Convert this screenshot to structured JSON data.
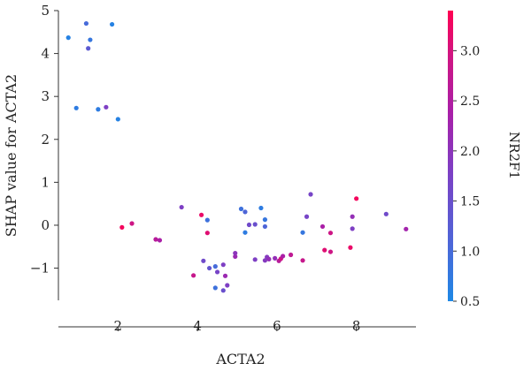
{
  "chart_data": {
    "type": "scatter",
    "xlabel": "ACTA2",
    "ylabel": "SHAP value for ACTA2",
    "xlim": [
      0.5,
      9.5
    ],
    "ylim": [
      -1.75,
      5.0
    ],
    "xticks": [
      2,
      4,
      6,
      8
    ],
    "xtick_labels": [
      "2",
      "4",
      "6",
      "8"
    ],
    "yticks": [
      5,
      4,
      3,
      2,
      1,
      0,
      -1
    ],
    "ytick_labels": [
      "5",
      "4",
      "3",
      "2",
      "1",
      "0",
      "−1"
    ],
    "colorbar": {
      "label": "NR2F1",
      "min": 0.5,
      "max": 3.4,
      "ticks": [
        3.0,
        2.5,
        2.0,
        1.5,
        1.0,
        0.5
      ],
      "tick_labels": [
        "3.0",
        "2.5",
        "2.0",
        "1.5",
        "1.0",
        "0.5"
      ],
      "colormap": [
        "#1e88e5",
        "#4d66d8",
        "#7e3fc4",
        "#a91fa8",
        "#d11581",
        "#ff0052"
      ]
    },
    "points": [
      {
        "x": 0.75,
        "y": 4.37,
        "c": 0.6
      },
      {
        "x": 1.2,
        "y": 4.7,
        "c": 1.0
      },
      {
        "x": 1.3,
        "y": 4.32,
        "c": 0.8
      },
      {
        "x": 1.25,
        "y": 4.12,
        "c": 1.3
      },
      {
        "x": 1.85,
        "y": 4.68,
        "c": 0.6
      },
      {
        "x": 0.95,
        "y": 2.73,
        "c": 0.7
      },
      {
        "x": 1.5,
        "y": 2.7,
        "c": 0.7
      },
      {
        "x": 1.7,
        "y": 2.75,
        "c": 1.8
      },
      {
        "x": 2.0,
        "y": 2.47,
        "c": 0.6
      },
      {
        "x": 2.1,
        "y": -0.05,
        "c": 3.3
      },
      {
        "x": 2.35,
        "y": 0.04,
        "c": 2.9
      },
      {
        "x": 2.95,
        "y": -0.33,
        "c": 2.6
      },
      {
        "x": 3.05,
        "y": -0.35,
        "c": 2.4
      },
      {
        "x": 3.6,
        "y": 0.42,
        "c": 1.8
      },
      {
        "x": 3.9,
        "y": -1.17,
        "c": 2.8
      },
      {
        "x": 4.1,
        "y": 0.24,
        "c": 3.2
      },
      {
        "x": 4.25,
        "y": 0.12,
        "c": 0.9
      },
      {
        "x": 4.25,
        "y": -0.18,
        "c": 3.1
      },
      {
        "x": 4.15,
        "y": -0.83,
        "c": 1.6
      },
      {
        "x": 4.3,
        "y": -1.0,
        "c": 1.4
      },
      {
        "x": 4.45,
        "y": -0.96,
        "c": 1.0
      },
      {
        "x": 4.5,
        "y": -1.09,
        "c": 1.7
      },
      {
        "x": 4.45,
        "y": -1.46,
        "c": 0.9
      },
      {
        "x": 4.65,
        "y": -1.52,
        "c": 1.5
      },
      {
        "x": 4.75,
        "y": -1.4,
        "c": 1.8
      },
      {
        "x": 4.65,
        "y": -0.92,
        "c": 1.8
      },
      {
        "x": 4.7,
        "y": -1.18,
        "c": 2.2
      },
      {
        "x": 4.95,
        "y": -0.73,
        "c": 2.2
      },
      {
        "x": 4.95,
        "y": -0.65,
        "c": 2.0
      },
      {
        "x": 5.1,
        "y": 0.38,
        "c": 0.9
      },
      {
        "x": 5.2,
        "y": 0.31,
        "c": 1.1
      },
      {
        "x": 5.2,
        "y": -0.17,
        "c": 0.7
      },
      {
        "x": 5.3,
        "y": 0.01,
        "c": 1.6
      },
      {
        "x": 5.45,
        "y": 0.02,
        "c": 1.5
      },
      {
        "x": 5.6,
        "y": 0.4,
        "c": 0.7
      },
      {
        "x": 5.7,
        "y": 0.13,
        "c": 0.8
      },
      {
        "x": 5.7,
        "y": -0.03,
        "c": 1.1
      },
      {
        "x": 5.45,
        "y": -0.8,
        "c": 1.8
      },
      {
        "x": 5.7,
        "y": -0.82,
        "c": 1.9
      },
      {
        "x": 5.75,
        "y": -0.74,
        "c": 1.9
      },
      {
        "x": 5.8,
        "y": -0.79,
        "c": 2.1
      },
      {
        "x": 5.95,
        "y": -0.77,
        "c": 2.1
      },
      {
        "x": 6.05,
        "y": -0.83,
        "c": 2.6
      },
      {
        "x": 6.1,
        "y": -0.78,
        "c": 2.9
      },
      {
        "x": 6.15,
        "y": -0.72,
        "c": 2.4
      },
      {
        "x": 6.35,
        "y": -0.69,
        "c": 2.7
      },
      {
        "x": 6.65,
        "y": -0.17,
        "c": 0.8
      },
      {
        "x": 6.65,
        "y": -0.82,
        "c": 2.8
      },
      {
        "x": 6.75,
        "y": 0.2,
        "c": 1.7
      },
      {
        "x": 6.85,
        "y": 0.72,
        "c": 1.7
      },
      {
        "x": 7.15,
        "y": -0.03,
        "c": 2.4
      },
      {
        "x": 7.2,
        "y": -0.58,
        "c": 3.1
      },
      {
        "x": 7.35,
        "y": -0.62,
        "c": 2.9
      },
      {
        "x": 7.35,
        "y": -0.18,
        "c": 2.9
      },
      {
        "x": 7.85,
        "y": -0.52,
        "c": 3.2
      },
      {
        "x": 7.9,
        "y": 0.2,
        "c": 2.1
      },
      {
        "x": 7.9,
        "y": -0.08,
        "c": 1.8
      },
      {
        "x": 8.0,
        "y": 0.62,
        "c": 3.3
      },
      {
        "x": 8.75,
        "y": 0.26,
        "c": 1.6
      },
      {
        "x": 9.25,
        "y": -0.09,
        "c": 2.3
      }
    ]
  }
}
